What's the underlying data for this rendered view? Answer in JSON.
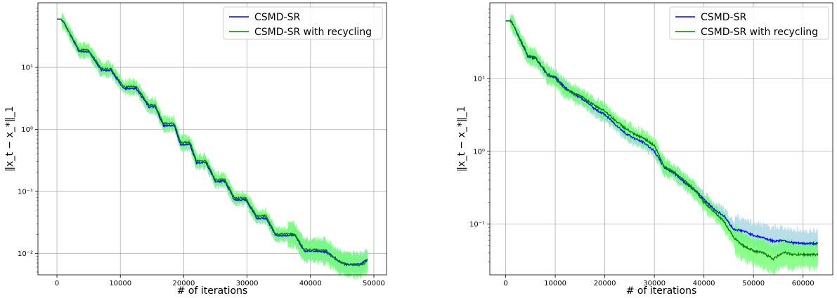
{
  "chart_data": [
    {
      "type": "line",
      "xlabel": "# of iterations",
      "ylabel": "‖x_t − x_*‖_1",
      "xlim": [
        -3000,
        52000
      ],
      "ylim": [
        0.0045,
        110
      ],
      "yscale": "log",
      "grid": true,
      "legend_position": "top-right",
      "xticks": [
        0,
        10000,
        20000,
        30000,
        40000,
        50000
      ],
      "xtick_labels": [
        "0",
        "10000",
        "20000",
        "30000",
        "40000",
        "50000"
      ],
      "yticks": [
        0.01,
        0.1,
        1,
        10
      ],
      "ytick_labels": [
        "10⁻²",
        "10⁻¹",
        "10⁰",
        "10¹"
      ],
      "series": [
        {
          "name": "CSMD-SR",
          "color": "#0000ff",
          "band_color": "#add8e6",
          "x": [
            0,
            600,
            1000,
            3500,
            5000,
            7000,
            8500,
            10500,
            12500,
            14500,
            15500,
            16800,
            18500,
            19500,
            21000,
            22000,
            23500,
            25000,
            26500,
            28000,
            29800,
            31500,
            33000,
            34500,
            35500,
            37500,
            39000,
            41000,
            42500,
            44500,
            45800,
            48000,
            49000
          ],
          "values": [
            60,
            60,
            55,
            18,
            18,
            9,
            9,
            4.6,
            4.6,
            2.3,
            2.3,
            1.15,
            1.15,
            0.57,
            0.57,
            0.29,
            0.29,
            0.145,
            0.145,
            0.073,
            0.073,
            0.037,
            0.037,
            0.0195,
            0.0195,
            0.0195,
            0.011,
            0.011,
            0.0105,
            0.0075,
            0.0065,
            0.0068,
            0.008
          ]
        },
        {
          "name": "CSMD-SR with recycling",
          "color": "#008000",
          "band_color": "#66ff66",
          "x": [
            0,
            600,
            1000,
            3500,
            5000,
            7000,
            8500,
            10500,
            12500,
            14500,
            15500,
            16800,
            18500,
            19500,
            21000,
            22000,
            23500,
            25000,
            26500,
            28000,
            29800,
            31500,
            33000,
            34500,
            35500,
            37500,
            39000,
            41000,
            42500,
            44500,
            45800,
            48000,
            49000
          ],
          "values": [
            60,
            60,
            55,
            19,
            19,
            9.5,
            9.5,
            4.9,
            4.9,
            2.45,
            2.45,
            1.25,
            1.25,
            0.62,
            0.62,
            0.31,
            0.31,
            0.155,
            0.155,
            0.078,
            0.078,
            0.04,
            0.04,
            0.0205,
            0.0205,
            0.0205,
            0.0115,
            0.0115,
            0.011,
            0.0073,
            0.0068,
            0.0064,
            0.0075
          ]
        }
      ]
    },
    {
      "type": "line",
      "xlabel": "# of iterations",
      "ylabel": "‖x_t − x_*‖_1",
      "xlim": [
        -3200,
        66000
      ],
      "ylim": [
        0.02,
        110
      ],
      "yscale": "log",
      "grid": true,
      "legend_position": "top-right",
      "xticks": [
        0,
        10000,
        20000,
        30000,
        40000,
        50000,
        60000
      ],
      "xtick_labels": [
        "0",
        "10000",
        "20000",
        "30000",
        "40000",
        "50000",
        "60000"
      ],
      "yticks": [
        0.1,
        1,
        10
      ],
      "ytick_labels": [
        "10⁻¹",
        "10⁰",
        "10¹"
      ],
      "series": [
        {
          "name": "CSMD-SR",
          "color": "#0000ff",
          "band_color": "#add8e6",
          "x": [
            0,
            1000,
            1500,
            4500,
            6000,
            8500,
            10000,
            12000,
            14000,
            16000,
            18000,
            20000,
            22000,
            24000,
            26000,
            28000,
            30000,
            32000,
            34000,
            36000,
            38000,
            40000,
            42000,
            44000,
            46000,
            48000,
            50000,
            52000,
            54000,
            56000,
            58000,
            60000,
            63000
          ],
          "values": [
            62,
            62,
            55,
            20,
            19,
            11,
            10.5,
            7.5,
            6,
            5,
            3.8,
            3.2,
            2.4,
            1.8,
            1.5,
            1.3,
            1,
            0.6,
            0.5,
            0.38,
            0.3,
            0.22,
            0.16,
            0.13,
            0.085,
            0.08,
            0.07,
            0.065,
            0.058,
            0.06,
            0.055,
            0.054,
            0.054
          ]
        },
        {
          "name": "CSMD-SR with recycling",
          "color": "#008000",
          "band_color": "#66ff66",
          "x": [
            0,
            1000,
            1500,
            4500,
            6000,
            8500,
            10000,
            12000,
            14000,
            16000,
            18000,
            20000,
            22000,
            24000,
            26000,
            28000,
            30000,
            32000,
            34000,
            36000,
            38000,
            40000,
            42000,
            44000,
            46000,
            48000,
            50000,
            52000,
            54000,
            56000,
            58000,
            60000,
            63000
          ],
          "values": [
            62,
            62,
            55,
            21,
            19.5,
            11.5,
            10,
            7.2,
            6.2,
            5.3,
            4.2,
            3.6,
            2.7,
            2.1,
            1.7,
            1.5,
            1.2,
            0.62,
            0.52,
            0.4,
            0.3,
            0.2,
            0.15,
            0.11,
            0.065,
            0.05,
            0.043,
            0.04,
            0.033,
            0.041,
            0.038,
            0.038,
            0.038
          ]
        }
      ]
    }
  ]
}
